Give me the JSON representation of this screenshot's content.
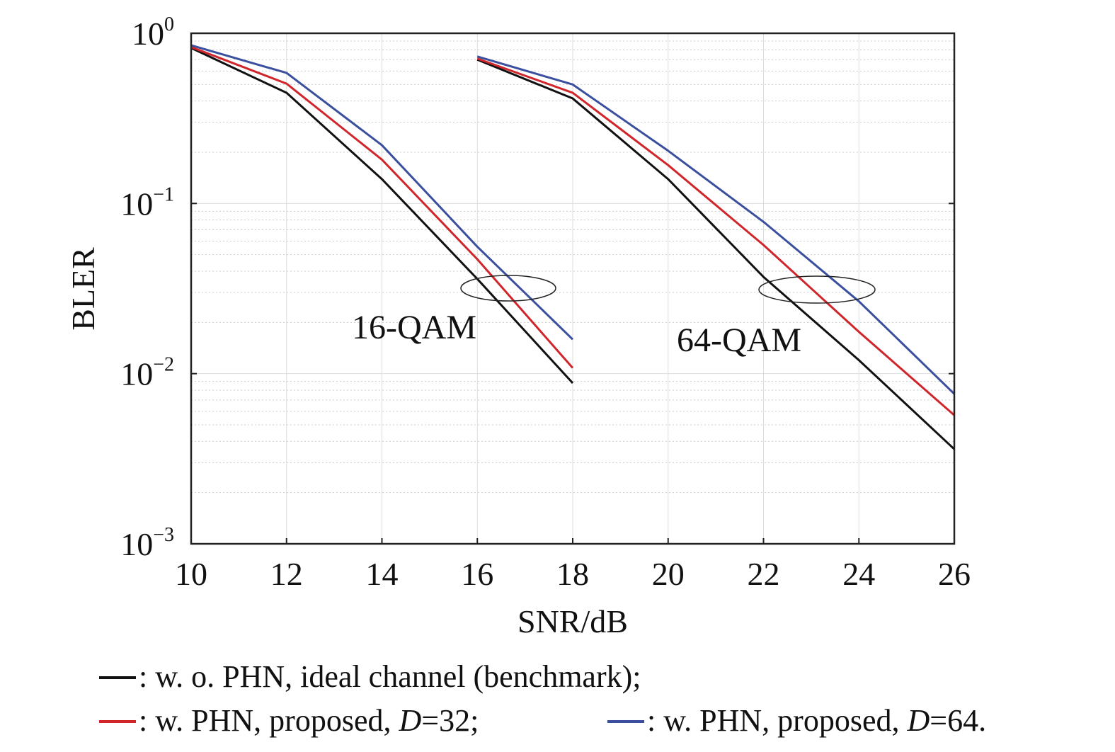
{
  "chart_data": {
    "type": "line",
    "xlabel": "SNR/dB",
    "ylabel": "BLER",
    "xlim": [
      10,
      26
    ],
    "ylim": [
      0.001,
      1
    ],
    "yscale": "log",
    "grid": true,
    "x_ticks": [
      "10",
      "12",
      "14",
      "16",
      "18",
      "20",
      "22",
      "24",
      "26"
    ],
    "y_ticks": [
      {
        "base": "10",
        "exp": "0",
        "value": 1
      },
      {
        "base": "10",
        "exp": "−1",
        "value": 0.1
      },
      {
        "base": "10",
        "exp": "−2",
        "value": 0.01
      },
      {
        "base": "10",
        "exp": "−3",
        "value": 0.001
      }
    ],
    "annotations": [
      {
        "text": "16-QAM",
        "ellipse_center": [
          16.9,
          0.033
        ]
      },
      {
        "text": "64-QAM",
        "ellipse_center": [
          23.3,
          0.032
        ]
      }
    ],
    "series": [
      {
        "name": "w. o. PHN, ideal channel (benchmark)",
        "color": "#111111",
        "group": "16-QAM",
        "x": [
          10,
          12,
          14,
          16,
          18
        ],
        "y": [
          0.82,
          0.447,
          0.139,
          0.036,
          0.0088
        ]
      },
      {
        "name": "w. PHN, proposed, D=32",
        "color": "#d0262b",
        "group": "16-QAM",
        "x": [
          10,
          12,
          14,
          16,
          18
        ],
        "y": [
          0.83,
          0.506,
          0.181,
          0.047,
          0.0108
        ]
      },
      {
        "name": "w. PHN, proposed, D=64",
        "color": "#3a4f9e",
        "group": "16-QAM",
        "x": [
          10,
          12,
          14,
          16,
          18
        ],
        "y": [
          0.85,
          0.585,
          0.22,
          0.0557,
          0.0159
        ]
      },
      {
        "name": "w. o. PHN, ideal channel (benchmark)",
        "color": "#111111",
        "group": "64-QAM",
        "x": [
          16,
          18,
          20,
          22,
          24,
          26
        ],
        "y": [
          0.7,
          0.414,
          0.139,
          0.037,
          0.012,
          0.0036
        ]
      },
      {
        "name": "w. PHN, proposed, D=32",
        "color": "#d0262b",
        "group": "64-QAM",
        "x": [
          16,
          18,
          20,
          22,
          24,
          26
        ],
        "y": [
          0.71,
          0.447,
          0.168,
          0.057,
          0.0176,
          0.0057
        ]
      },
      {
        "name": "w. PHN, proposed, D=64",
        "color": "#3a4f9e",
        "group": "64-QAM",
        "x": [
          16,
          18,
          20,
          22,
          24,
          26
        ],
        "y": [
          0.73,
          0.5,
          0.204,
          0.078,
          0.0266,
          0.0076
        ]
      }
    ],
    "legend": {
      "placement": "bottom",
      "items": [
        {
          "color": "#111111",
          "prefix": ": w. o. PHN, ideal channel (benchmark);",
          "italic": "",
          "suffix": ""
        },
        {
          "color": "#d0262b",
          "prefix": ": w. PHN, proposed, ",
          "italic": "D",
          "suffix": "=32;"
        },
        {
          "color": "#3a4f9e",
          "prefix": ": w. PHN, proposed, ",
          "italic": "D",
          "suffix": "=64."
        }
      ]
    }
  }
}
